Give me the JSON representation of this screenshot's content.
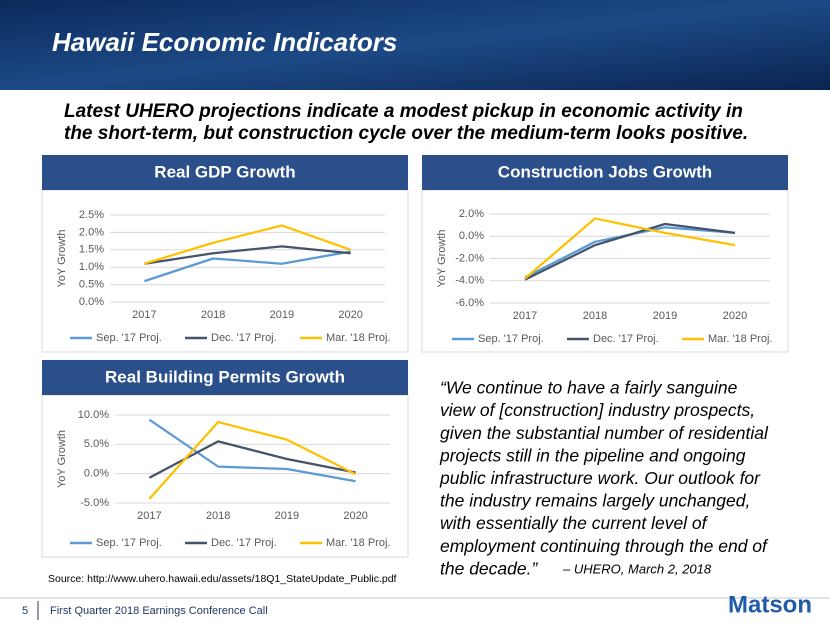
{
  "header": {
    "title": "Hawaii Economic Indicators",
    "subtitle": [
      "Latest UHERO projections indicate a modest pickup in economic activity in",
      "the short-term, but construction cycle over the medium-term looks positive."
    ]
  },
  "chart_data": [
    {
      "type": "line",
      "title": "Real GDP Growth",
      "y_label": "YoY Growth",
      "categories": [
        "2017",
        "2018",
        "2019",
        "2020"
      ],
      "series": [
        {
          "name": "Sep. '17 Proj.",
          "color": "#5b9bd5",
          "values": [
            0.6,
            1.25,
            1.1,
            1.45
          ]
        },
        {
          "name": "Dec. '17 Proj.",
          "color": "#44546a",
          "values": [
            1.1,
            1.4,
            1.6,
            1.4
          ]
        },
        {
          "name": "Mar. '18 Proj.",
          "color": "#ffc000",
          "values": [
            1.1,
            1.7,
            2.2,
            1.5
          ]
        }
      ],
      "ylim": [
        0,
        2.5
      ],
      "yticks": [
        {
          "value": 0,
          "label": "0.0%"
        },
        {
          "value": 0.5,
          "label": "0.5%"
        },
        {
          "value": 1,
          "label": "1.0%"
        },
        {
          "value": 1.5,
          "label": "1.5%"
        },
        {
          "value": 2,
          "label": "2.0%"
        },
        {
          "value": 2.5,
          "label": "2.5%"
        }
      ],
      "grid": true,
      "legend": "bottom"
    },
    {
      "type": "line",
      "title": "Construction Jobs Growth",
      "y_label": "YoY Growth",
      "categories": [
        "2017",
        "2018",
        "2019",
        "2020"
      ],
      "series": [
        {
          "name": "Sep. '17 Proj.",
          "color": "#5b9bd5",
          "values": [
            -3.7,
            -0.5,
            0.8,
            0.3
          ]
        },
        {
          "name": "Dec. '17 Proj.",
          "color": "#44546a",
          "values": [
            -3.9,
            -0.8,
            1.1,
            0.3
          ]
        },
        {
          "name": "Mar. '18 Proj.",
          "color": "#ffc000",
          "values": [
            -3.8,
            1.6,
            0.3,
            -0.8
          ]
        }
      ],
      "ylim": [
        -6,
        2
      ],
      "yticks": [
        {
          "value": -6,
          "label": "-6.0%"
        },
        {
          "value": -4,
          "label": "-4.0%"
        },
        {
          "value": -2,
          "label": "-2.0%"
        },
        {
          "value": 0,
          "label": "0.0%"
        },
        {
          "value": 2,
          "label": "2.0%"
        }
      ],
      "grid": true,
      "legend": "bottom"
    },
    {
      "type": "line",
      "title": "Real Building Permits Growth",
      "y_label": "YoY Growth",
      "categories": [
        "2017",
        "2018",
        "2019",
        "2020"
      ],
      "series": [
        {
          "name": "Sep. '17 Proj.",
          "color": "#5b9bd5",
          "values": [
            9.2,
            1.2,
            0.8,
            -1.3
          ]
        },
        {
          "name": "Dec. '17 Proj.",
          "color": "#44546a",
          "values": [
            -0.7,
            5.5,
            2.5,
            0.2
          ]
        },
        {
          "name": "Mar. '18 Proj.",
          "color": "#ffc000",
          "values": [
            -4.3,
            8.8,
            5.8,
            -0.1
          ]
        }
      ],
      "ylim": [
        -5,
        10
      ],
      "yticks": [
        {
          "value": -5,
          "label": "-5.0%"
        },
        {
          "value": 0,
          "label": "0.0%"
        },
        {
          "value": 5,
          "label": "5.0%"
        },
        {
          "value": 10,
          "label": "10.0%"
        }
      ],
      "grid": true,
      "legend": "bottom"
    }
  ],
  "quote": {
    "lines": [
      "“We continue to have a fairly sanguine",
      "view of [construction] industry prospects,",
      "given the substantial number of residential",
      "projects still in the pipeline and ongoing",
      "public infrastructure work. Our outlook for",
      "the industry remains largely unchanged,",
      "with essentially the current level of",
      "employment continuing through the end of",
      "the decade.”"
    ],
    "attribution": "– UHERO, March 2, 2018"
  },
  "source": "Source:  http://www.uhero.hawaii.edu/assets/18Q1_StateUpdate_Public.pdf",
  "footer": {
    "page": "5",
    "text": "First Quarter 2018 Earnings Conference Call",
    "logo": "Matson"
  }
}
